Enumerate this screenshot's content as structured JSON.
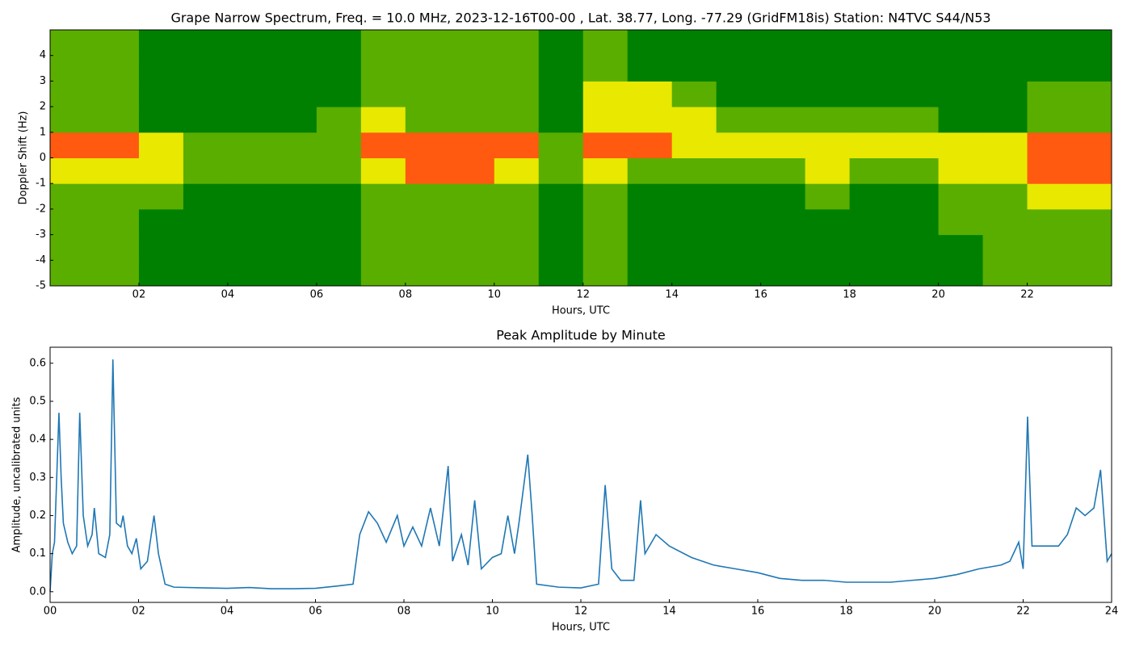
{
  "chart_data": [
    {
      "type": "heatmap",
      "title": "Grape Narrow Spectrum, Freq. = 10.0 MHz, 2023-12-16T00-00 , Lat.  38.77, Long. -77.29 (GridFM18is) Station: N4TVC S44/N53",
      "x_label": "Hours, UTC",
      "y_label": "Doppler Shift (Hz)",
      "x": [
        0,
        1,
        2,
        3,
        4,
        5,
        6,
        7,
        8,
        9,
        10,
        11,
        12,
        13,
        14,
        15,
        16,
        17,
        18,
        19,
        20,
        21,
        22,
        23
      ],
      "y": [
        -5,
        -4,
        -3,
        -2,
        -1,
        0,
        1,
        2,
        3,
        4
      ],
      "z": [
        [
          1,
          1,
          0,
          0,
          0,
          0,
          0,
          1,
          1,
          1,
          1,
          0,
          1,
          0,
          0,
          0,
          0,
          0,
          0,
          0,
          0,
          1,
          1,
          1
        ],
        [
          1,
          1,
          0,
          0,
          0,
          0,
          0,
          1,
          1,
          1,
          1,
          0,
          1,
          0,
          0,
          0,
          0,
          0,
          0,
          0,
          0,
          1,
          1,
          1
        ],
        [
          1,
          1,
          0,
          0,
          0,
          0,
          0,
          1,
          1,
          1,
          1,
          0,
          1,
          0,
          0,
          0,
          0,
          0,
          0,
          0,
          1,
          1,
          1,
          1
        ],
        [
          1,
          1,
          1,
          0,
          0,
          0,
          0,
          1,
          1,
          1,
          1,
          0,
          1,
          0,
          0,
          0,
          0,
          1,
          0,
          0,
          1,
          1,
          2,
          2
        ],
        [
          2,
          2,
          2,
          1,
          1,
          1,
          1,
          2,
          3,
          3,
          2,
          1,
          2,
          1,
          1,
          1,
          1,
          2,
          1,
          1,
          2,
          2,
          3,
          3
        ],
        [
          3,
          3,
          2,
          1,
          1,
          1,
          1,
          3,
          3,
          3,
          3,
          1,
          3,
          3,
          2,
          2,
          2,
          2,
          2,
          2,
          2,
          2,
          3,
          3
        ],
        [
          1,
          1,
          0,
          0,
          0,
          0,
          1,
          2,
          1,
          1,
          1,
          0,
          2,
          2,
          2,
          1,
          1,
          1,
          1,
          1,
          0,
          0,
          1,
          1
        ],
        [
          1,
          1,
          0,
          0,
          0,
          0,
          0,
          1,
          1,
          1,
          1,
          0,
          2,
          2,
          1,
          0,
          0,
          0,
          0,
          0,
          0,
          0,
          1,
          1
        ],
        [
          1,
          1,
          0,
          0,
          0,
          0,
          0,
          1,
          1,
          1,
          1,
          0,
          1,
          0,
          0,
          0,
          0,
          0,
          0,
          0,
          0,
          0,
          0,
          0
        ],
        [
          1,
          1,
          0,
          0,
          0,
          0,
          0,
          1,
          1,
          1,
          1,
          0,
          1,
          0,
          0,
          0,
          0,
          0,
          0,
          0,
          0,
          0,
          0,
          0
        ]
      ],
      "colormap": [
        "#008000",
        "#5aae00",
        "#e8e800",
        "#ff5a10"
      ],
      "xlim": [
        0,
        23.9
      ],
      "ylim": [
        -5,
        5
      ],
      "xticks": [
        {
          "value": 2,
          "label": "02"
        },
        {
          "value": 4,
          "label": "04"
        },
        {
          "value": 6,
          "label": "06"
        },
        {
          "value": 8,
          "label": "08"
        },
        {
          "value": 10,
          "label": "10"
        },
        {
          "value": 12,
          "label": "12"
        },
        {
          "value": 14,
          "label": "14"
        },
        {
          "value": 16,
          "label": "16"
        },
        {
          "value": 18,
          "label": "18"
        },
        {
          "value": 20,
          "label": "20"
        },
        {
          "value": 22,
          "label": "22"
        }
      ],
      "yticks": [
        -5,
        -4,
        -3,
        -2,
        -1,
        0,
        1,
        2,
        3,
        4
      ]
    },
    {
      "type": "line",
      "title": "Peak Amplitude by Minute",
      "x_label": "Hours, UTC",
      "y_label": "Amplitude, uncalibrated units",
      "color": "#1f77b4",
      "x": [
        0,
        0.05,
        0.1,
        0.2,
        0.25,
        0.3,
        0.4,
        0.5,
        0.6,
        0.67,
        0.75,
        0.85,
        0.95,
        1.0,
        1.1,
        1.25,
        1.35,
        1.42,
        1.5,
        1.6,
        1.65,
        1.75,
        1.85,
        1.95,
        2.05,
        2.2,
        2.35,
        2.45,
        2.6,
        2.8,
        3.5,
        4.0,
        4.5,
        5.0,
        5.5,
        6.0,
        6.5,
        6.85,
        7.0,
        7.2,
        7.4,
        7.6,
        7.85,
        8.0,
        8.2,
        8.4,
        8.6,
        8.8,
        9.0,
        9.1,
        9.3,
        9.45,
        9.6,
        9.75,
        10.0,
        10.2,
        10.35,
        10.5,
        10.6,
        10.8,
        10.9,
        11.0,
        11.5,
        12.0,
        12.4,
        12.55,
        12.7,
        12.9,
        13.2,
        13.35,
        13.45,
        13.7,
        14.0,
        14.5,
        15.0,
        15.5,
        16.0,
        16.5,
        17.0,
        17.5,
        18.0,
        18.5,
        19.0,
        19.5,
        20.0,
        20.5,
        21.0,
        21.5,
        21.7,
        21.9,
        22.0,
        22.1,
        22.2,
        22.5,
        22.8,
        23.0,
        23.2,
        23.4,
        23.6,
        23.75,
        23.9,
        24.0
      ],
      "values": [
        0,
        0.1,
        0.13,
        0.47,
        0.3,
        0.18,
        0.13,
        0.1,
        0.12,
        0.47,
        0.2,
        0.12,
        0.15,
        0.22,
        0.1,
        0.09,
        0.15,
        0.61,
        0.18,
        0.17,
        0.2,
        0.12,
        0.1,
        0.14,
        0.06,
        0.08,
        0.2,
        0.1,
        0.02,
        0.012,
        0.01,
        0.009,
        0.011,
        0.008,
        0.008,
        0.009,
        0.015,
        0.02,
        0.15,
        0.21,
        0.18,
        0.13,
        0.2,
        0.12,
        0.17,
        0.12,
        0.22,
        0.12,
        0.33,
        0.08,
        0.15,
        0.07,
        0.24,
        0.06,
        0.09,
        0.1,
        0.2,
        0.1,
        0.18,
        0.36,
        0.2,
        0.02,
        0.012,
        0.01,
        0.02,
        0.28,
        0.06,
        0.03,
        0.03,
        0.24,
        0.1,
        0.15,
        0.12,
        0.09,
        0.07,
        0.06,
        0.05,
        0.035,
        0.03,
        0.03,
        0.025,
        0.025,
        0.025,
        0.03,
        0.035,
        0.045,
        0.06,
        0.07,
        0.08,
        0.13,
        0.06,
        0.46,
        0.12,
        0.12,
        0.12,
        0.15,
        0.22,
        0.2,
        0.22,
        0.32,
        0.08,
        0.1
      ],
      "xlim": [
        0,
        24
      ],
      "ylim": [
        -0.028,
        0.642
      ],
      "xticks": [
        {
          "value": 0,
          "label": "00"
        },
        {
          "value": 2,
          "label": "02"
        },
        {
          "value": 4,
          "label": "04"
        },
        {
          "value": 6,
          "label": "06"
        },
        {
          "value": 8,
          "label": "08"
        },
        {
          "value": 10,
          "label": "10"
        },
        {
          "value": 12,
          "label": "12"
        },
        {
          "value": 14,
          "label": "14"
        },
        {
          "value": 16,
          "label": "16"
        },
        {
          "value": 18,
          "label": "18"
        },
        {
          "value": 20,
          "label": "20"
        },
        {
          "value": 22,
          "label": "22"
        },
        {
          "value": 24,
          "label": "24"
        }
      ],
      "yticks": [
        {
          "value": 0,
          "label": "0.0"
        },
        0.1,
        0.2,
        0.3,
        0.4,
        0.5,
        0.6
      ]
    }
  ]
}
